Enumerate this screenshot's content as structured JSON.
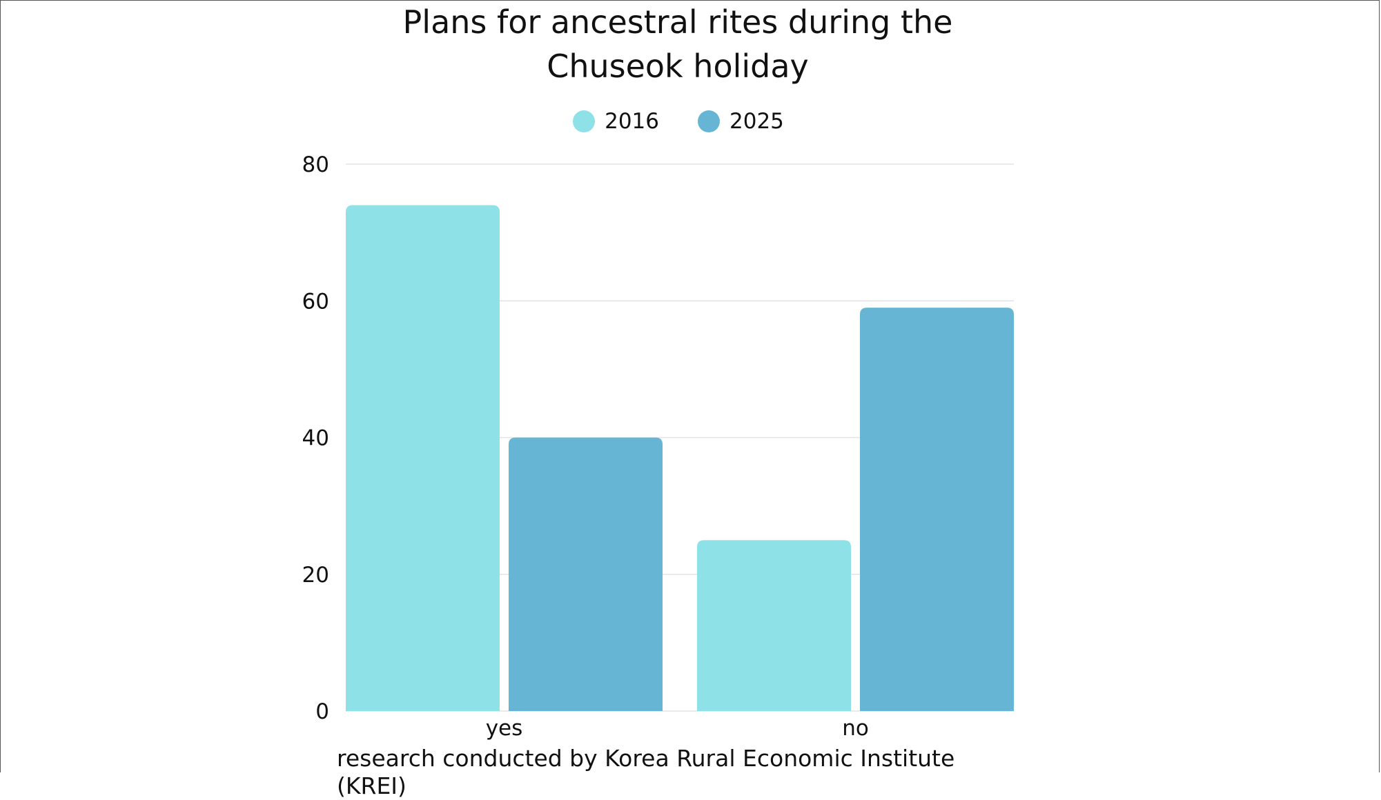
{
  "chart_data": {
    "type": "bar",
    "title_lines": [
      "Plans for ancestral rites during the",
      "Chuseok holiday"
    ],
    "categories": [
      "yes",
      "no"
    ],
    "series": [
      {
        "name": "2016",
        "values": [
          74,
          25
        ],
        "color": "#8ee2e7"
      },
      {
        "name": "2025",
        "values": [
          40,
          59
        ],
        "color": "#66b5d4"
      }
    ],
    "y_ticks": [
      "0",
      "20",
      "40",
      "60",
      "80"
    ],
    "ylim": [
      0,
      80
    ],
    "grid": true,
    "legend_position": "top-center",
    "source_note": "research conducted by Korea Rural Economic Institute (KREI)"
  }
}
